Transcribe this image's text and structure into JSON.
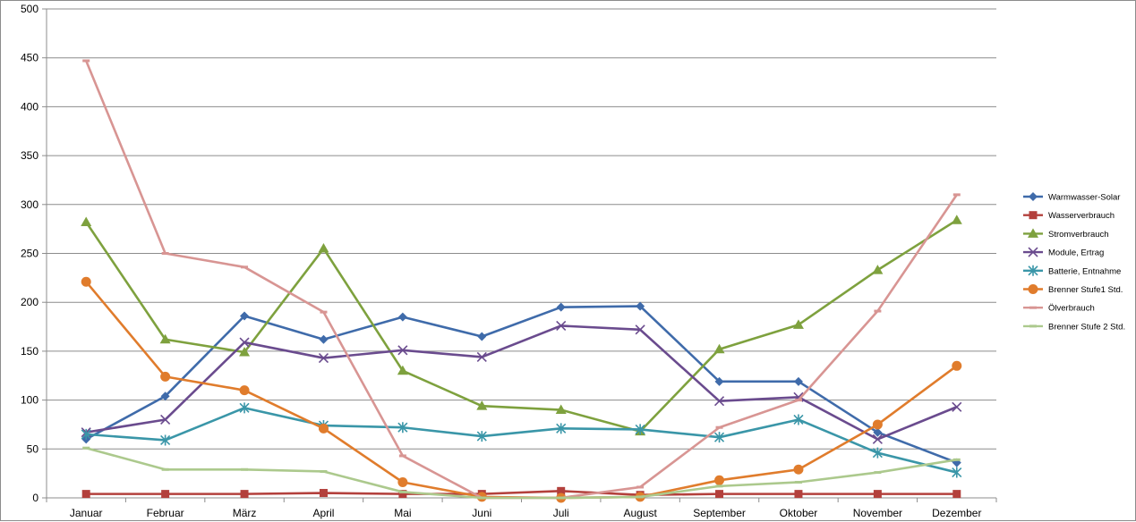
{
  "chart_data": {
    "type": "line",
    "categories": [
      "Januar",
      "Februar",
      "März",
      "April",
      "Mai",
      "Juni",
      "Juli",
      "August",
      "September",
      "Oktober",
      "November",
      "Dezember"
    ],
    "ylim": [
      0,
      500
    ],
    "yticks": [
      0,
      50,
      100,
      150,
      200,
      250,
      300,
      350,
      400,
      450,
      500
    ],
    "grid": "horizontal",
    "legend_position": "right",
    "series": [
      {
        "name": "Warmwasser-Solar",
        "color": "#3F6BAA",
        "marker": "diamond",
        "values": [
          60,
          104,
          186,
          162,
          185,
          165,
          195,
          196,
          119,
          119,
          67,
          36
        ]
      },
      {
        "name": "Wasserverbrauch",
        "color": "#B3403C",
        "marker": "square",
        "values": [
          4,
          4,
          4,
          5,
          4,
          4,
          7,
          3,
          4,
          4,
          4,
          4
        ]
      },
      {
        "name": "Stromverbrauch",
        "color": "#7EA13E",
        "marker": "triangle",
        "values": [
          282,
          162,
          149,
          255,
          130,
          94,
          90,
          68,
          152,
          177,
          233,
          284
        ]
      },
      {
        "name": "Module, Ertrag",
        "color": "#6A4B8E",
        "marker": "x",
        "values": [
          67,
          80,
          159,
          143,
          151,
          144,
          176,
          172,
          99,
          103,
          60,
          93
        ]
      },
      {
        "name": "Batterie, Entnahme",
        "color": "#3A96A8",
        "marker": "asterisk",
        "values": [
          65,
          59,
          92,
          74,
          72,
          63,
          71,
          70,
          62,
          80,
          46,
          26
        ]
      },
      {
        "name": "Brenner Stufe1 Std.",
        "color": "#E07C2C",
        "marker": "circle",
        "values": [
          221,
          124,
          110,
          71,
          16,
          1,
          0,
          1,
          18,
          29,
          75,
          135
        ]
      },
      {
        "name": "Ölverbrauch",
        "color": "#D89593",
        "marker": "dash",
        "values": [
          447,
          250,
          236,
          190,
          43,
          0,
          0,
          11,
          72,
          100,
          191,
          310
        ]
      },
      {
        "name": "Brenner Stufe 2 Std.",
        "color": "#ACC98D",
        "marker": "dash",
        "values": [
          51,
          29,
          29,
          27,
          6,
          0,
          0,
          1,
          12,
          16,
          26,
          39
        ]
      }
    ]
  }
}
